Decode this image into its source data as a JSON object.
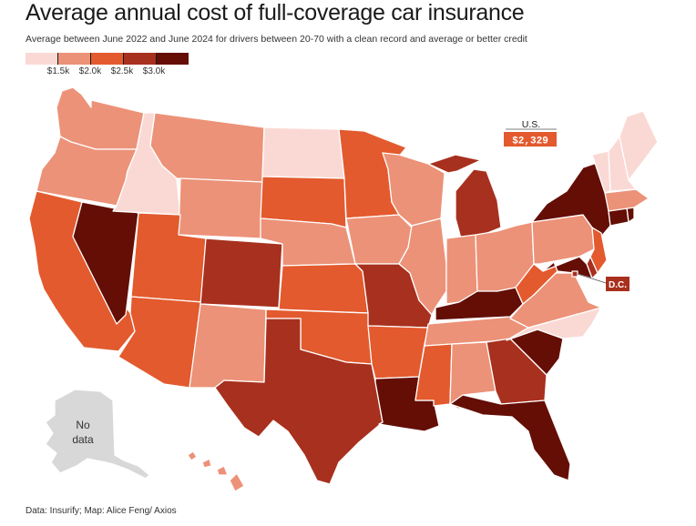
{
  "header": {
    "title": "Average annual cost of full-coverage car insurance",
    "subtitle": "Average between June 2022 and June 2024 for drivers between 20-70 with a clean record and average or better credit"
  },
  "legend": {
    "ticks": [
      "$1.5k",
      "$2.0k",
      "$2.5k",
      "$3.0k"
    ],
    "colors": [
      "#fad9d4",
      "#ec9278",
      "#e35a2e",
      "#a8301e",
      "#640e06"
    ]
  },
  "callouts": {
    "us_label": "U.S.",
    "us_value": "$2,329",
    "dc_label": "D.C."
  },
  "no_data": {
    "line1": "No",
    "line2": "data"
  },
  "source": "Data: Insurify; Map: Alice Feng/ Axios",
  "chart_data": {
    "type": "choropleth",
    "bins": [
      {
        "label": "lightest",
        "color": "#fad9d4"
      },
      {
        "label": "light",
        "color": "#ec9278"
      },
      {
        "label": "medium",
        "color": "#e35a2e"
      },
      {
        "label": "dark",
        "color": "#a8301e"
      },
      {
        "label": "darkest",
        "color": "#640e06"
      },
      {
        "label": "no data",
        "color": "#d8d8d8"
      }
    ],
    "states": [
      {
        "state": "WA",
        "bin": 1
      },
      {
        "state": "OR",
        "bin": 1
      },
      {
        "state": "CA",
        "bin": 2
      },
      {
        "state": "ID",
        "bin": 0
      },
      {
        "state": "NV",
        "bin": 4
      },
      {
        "state": "MT",
        "bin": 1
      },
      {
        "state": "WY",
        "bin": 1
      },
      {
        "state": "UT",
        "bin": 2
      },
      {
        "state": "AZ",
        "bin": 2
      },
      {
        "state": "CO",
        "bin": 3
      },
      {
        "state": "NM",
        "bin": 1
      },
      {
        "state": "ND",
        "bin": 0
      },
      {
        "state": "SD",
        "bin": 2
      },
      {
        "state": "NE",
        "bin": 1
      },
      {
        "state": "KS",
        "bin": 2
      },
      {
        "state": "OK",
        "bin": 2
      },
      {
        "state": "TX",
        "bin": 3
      },
      {
        "state": "MN",
        "bin": 2
      },
      {
        "state": "IA",
        "bin": 1
      },
      {
        "state": "MO",
        "bin": 3
      },
      {
        "state": "AR",
        "bin": 2
      },
      {
        "state": "LA",
        "bin": 4
      },
      {
        "state": "WI",
        "bin": 1
      },
      {
        "state": "IL",
        "bin": 1
      },
      {
        "state": "MI",
        "bin": 3
      },
      {
        "state": "IN",
        "bin": 1
      },
      {
        "state": "OH",
        "bin": 1
      },
      {
        "state": "KY",
        "bin": 4
      },
      {
        "state": "TN",
        "bin": 1
      },
      {
        "state": "MS",
        "bin": 2
      },
      {
        "state": "AL",
        "bin": 1
      },
      {
        "state": "GA",
        "bin": 3
      },
      {
        "state": "FL",
        "bin": 4
      },
      {
        "state": "SC",
        "bin": 4
      },
      {
        "state": "NC",
        "bin": 0
      },
      {
        "state": "VA",
        "bin": 1
      },
      {
        "state": "WV",
        "bin": 2
      },
      {
        "state": "PA",
        "bin": 1
      },
      {
        "state": "NY",
        "bin": 4
      },
      {
        "state": "NJ",
        "bin": 2
      },
      {
        "state": "DE",
        "bin": 3
      },
      {
        "state": "MD",
        "bin": 4
      },
      {
        "state": "CT",
        "bin": 4
      },
      {
        "state": "RI",
        "bin": 4
      },
      {
        "state": "MA",
        "bin": 1
      },
      {
        "state": "VT",
        "bin": 0
      },
      {
        "state": "NH",
        "bin": 0
      },
      {
        "state": "ME",
        "bin": 0
      },
      {
        "state": "HI",
        "bin": 1
      },
      {
        "state": "AK",
        "bin": 5
      },
      {
        "state": "DC",
        "bin": 3
      }
    ],
    "us_average": "$2,329"
  }
}
